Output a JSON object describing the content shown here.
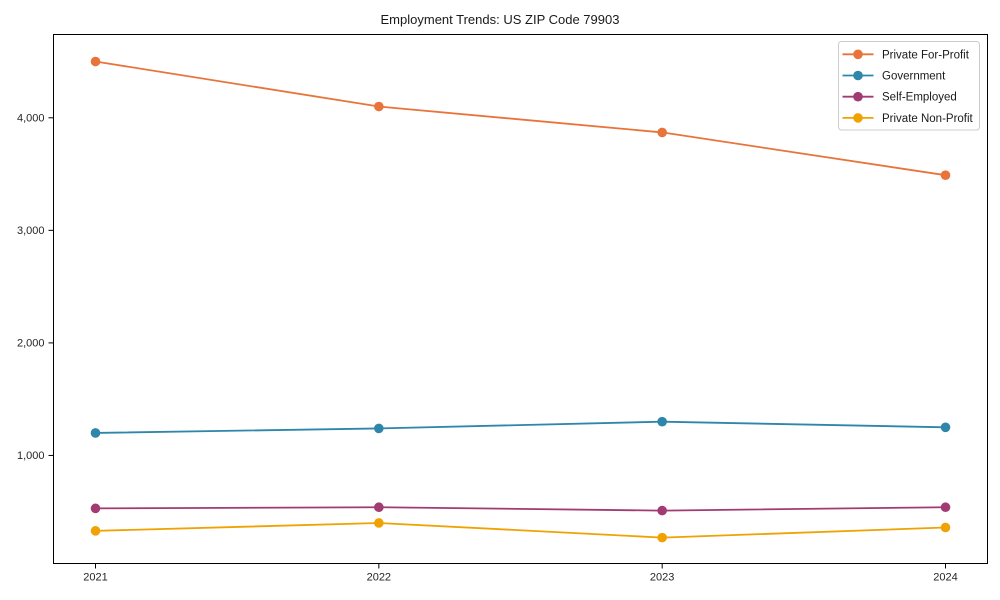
{
  "chart_data": {
    "type": "line",
    "title": "Employment Trends: US ZIP Code 79903",
    "x": [
      "2021",
      "2022",
      "2023",
      "2024"
    ],
    "series": [
      {
        "name": "Private For-Profit",
        "color": "#E8743B",
        "values": [
          4500,
          4100,
          3870,
          3490
        ]
      },
      {
        "name": "Government",
        "color": "#2E86AB",
        "values": [
          1200,
          1240,
          1300,
          1250
        ]
      },
      {
        "name": "Self-Employed",
        "color": "#A23B72",
        "values": [
          530,
          540,
          510,
          540
        ]
      },
      {
        "name": "Private Non-Profit",
        "color": "#F0A202",
        "values": [
          330,
          400,
          270,
          360
        ]
      }
    ],
    "xlabel": "",
    "ylabel": "",
    "ylim": [
      40,
      4740
    ],
    "yticks": [
      1000,
      2000,
      3000,
      4000
    ],
    "ytick_labels": [
      "1,000",
      "2,000",
      "3,000",
      "4,000"
    ],
    "legend_position": "upper right",
    "grid": false,
    "marker": "o",
    "colors": {
      "background": "#ffffff",
      "frame": "#000000",
      "tick_text": "#262626",
      "legend_border": "#cccccc",
      "legend_text": "#1a1a1a"
    }
  }
}
